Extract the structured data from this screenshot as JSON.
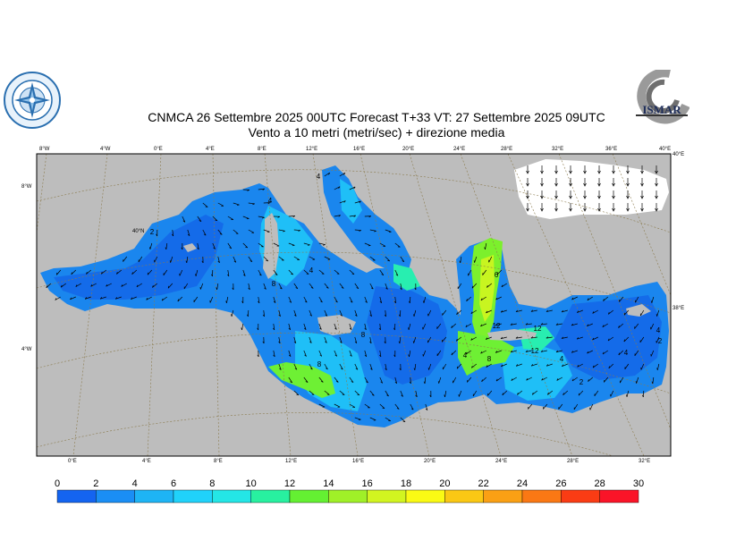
{
  "title_line1": "CNMCA 26 Settembre 2025 00UTC Forecast T+33 VT: 27 Settembre 2025 09UTC",
  "title_line2": "Vento a 10 metri (metri/sec) + direzione media",
  "logo_right_text": "ISMAR",
  "top_ticks": [
    "8°W",
    "4°W",
    "0°E",
    "4°E",
    "8°E",
    "12°E",
    "16°E",
    "20°E",
    "24°E",
    "28°E",
    "32°E",
    "36°E",
    "40°E"
  ],
  "bottom_ticks": [
    "0°E",
    "4°E",
    "8°E",
    "12°E",
    "16°E",
    "20°E",
    "24°E",
    "28°E",
    "32°E"
  ],
  "left_ticks": [
    "8°W",
    "4°W"
  ],
  "right_ticks": [
    "40°E",
    "38°E"
  ],
  "inner_lat_label": "40°N",
  "colorbar": {
    "labels": [
      "0",
      "2",
      "4",
      "6",
      "8",
      "10",
      "12",
      "14",
      "16",
      "18",
      "20",
      "22",
      "24",
      "26",
      "28",
      "30"
    ],
    "colors": [
      "#1464f0",
      "#1a8ef5",
      "#1eb4f5",
      "#20d2fa",
      "#24e6e6",
      "#28f0a0",
      "#64f032",
      "#a0f028",
      "#d2f520",
      "#fafa14",
      "#fac814",
      "#faa014",
      "#fa7814",
      "#fa3c14",
      "#fa1428",
      "#fa148c"
    ]
  },
  "labels_on_map": [
    "4",
    "4",
    "8",
    "4",
    "8",
    "8",
    "2",
    "12",
    "8",
    "12",
    "12",
    "4",
    "4",
    "4",
    "2",
    "6",
    "4",
    "2"
  ]
}
